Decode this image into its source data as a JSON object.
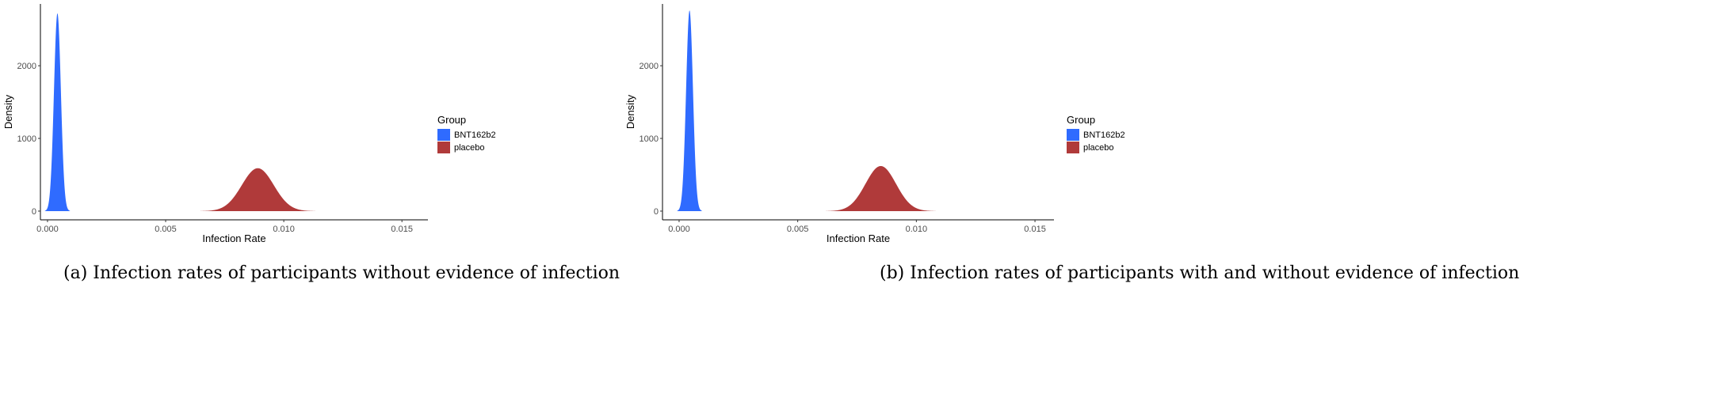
{
  "colors": {
    "BNT162b2": "#2F6BFF",
    "placebo": "#B03A3A"
  },
  "chart_data": [
    {
      "type": "area",
      "caption_label": "(a)",
      "caption": "Infection rates of participants without evidence of infection",
      "xlabel": "Infection Rate",
      "ylabel": "Density",
      "xlim": [
        -0.0003,
        0.0161
      ],
      "ylim": [
        -120,
        2850
      ],
      "xticks": [
        "0.000",
        "0.005",
        "0.010",
        "0.015"
      ],
      "xtick_values": [
        0,
        0.005,
        0.01,
        0.015
      ],
      "yticks": [
        "0",
        "1000",
        "2000"
      ],
      "ytick_values": [
        0,
        1000,
        2000
      ],
      "grid": false,
      "legend": {
        "title": "Group",
        "position": "right",
        "entries": [
          "BNT162b2",
          "placebo"
        ]
      },
      "series": [
        {
          "name": "BNT162b2",
          "peak_x": 0.00042,
          "peak_density": 2720,
          "sd": 0.000147
        },
        {
          "name": "placebo",
          "peak_x": 0.0089,
          "peak_density": 590,
          "sd": 0.000676
        }
      ]
    },
    {
      "type": "area",
      "caption_label": "(b)",
      "caption": "Infection rates of participants with and without evidence of infection",
      "xlabel": "Infection Rate",
      "ylabel": "Density",
      "xlim": [
        -0.0007,
        0.0158
      ],
      "ylim": [
        -120,
        2850
      ],
      "xticks": [
        "0.000",
        "0.005",
        "0.010",
        "0.015"
      ],
      "xtick_values": [
        0,
        0.005,
        0.01,
        0.015
      ],
      "yticks": [
        "0",
        "1000",
        "2000"
      ],
      "ytick_values": [
        0,
        1000,
        2000
      ],
      "grid": false,
      "legend": {
        "title": "Group",
        "position": "right",
        "entries": [
          "BNT162b2",
          "placebo"
        ]
      },
      "series": [
        {
          "name": "BNT162b2",
          "peak_x": 0.00044,
          "peak_density": 2760,
          "sd": 0.000145
        },
        {
          "name": "placebo",
          "peak_x": 0.0085,
          "peak_density": 620,
          "sd": 0.000643
        }
      ]
    }
  ]
}
